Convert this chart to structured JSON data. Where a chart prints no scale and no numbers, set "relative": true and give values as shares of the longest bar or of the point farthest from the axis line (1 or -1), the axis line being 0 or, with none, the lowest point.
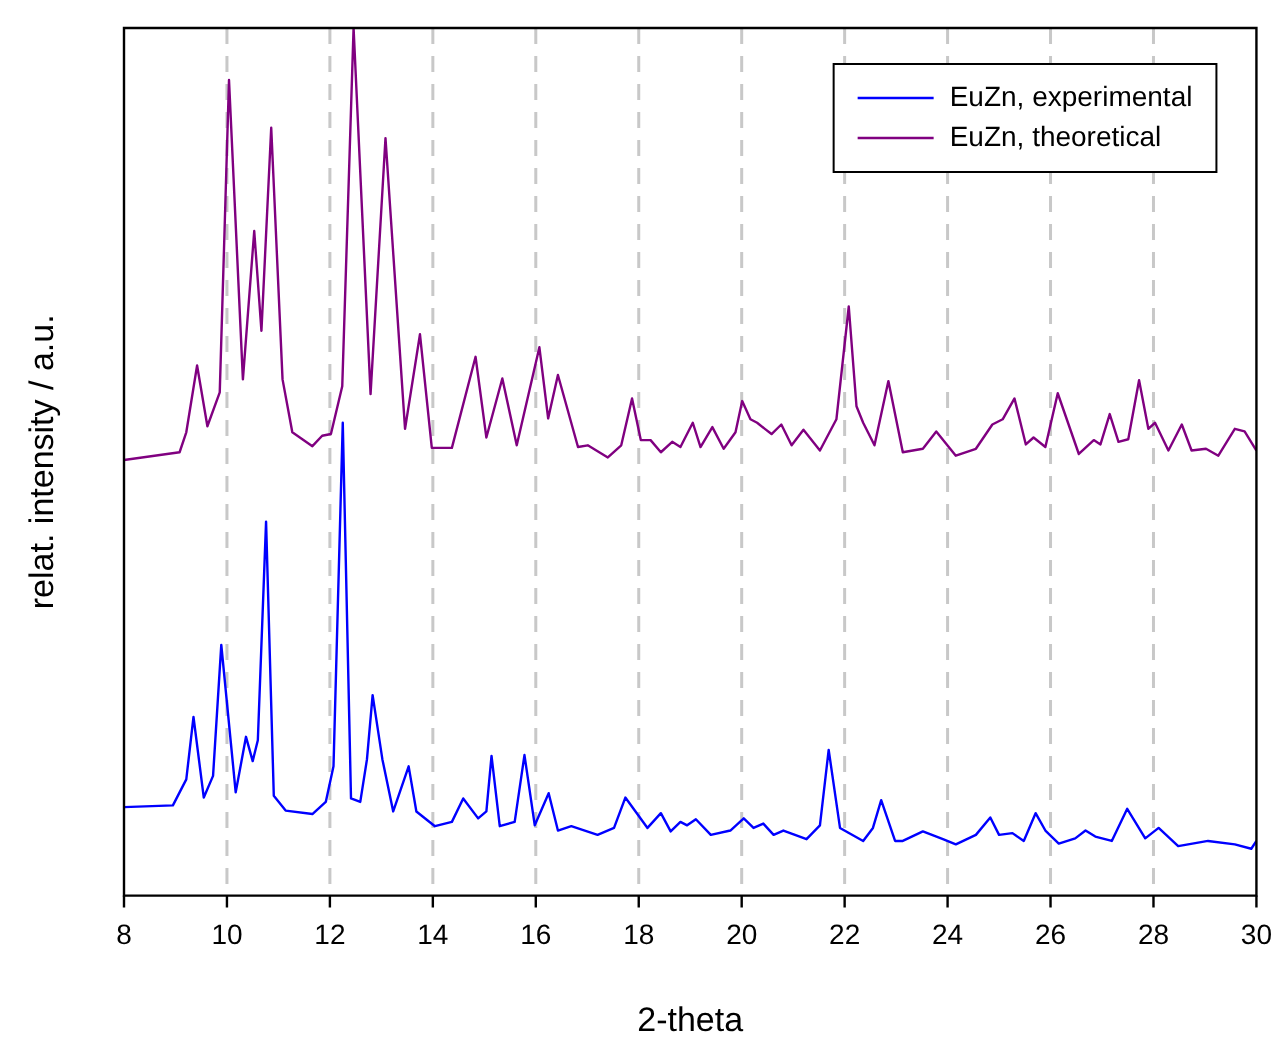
{
  "chart_data": {
    "type": "line",
    "xlabel": "2-theta",
    "ylabel": "relat. intensity / a.u.",
    "relative": true,
    "xlim": [
      8,
      30
    ],
    "xticks": [
      8,
      10,
      12,
      14,
      16,
      18,
      20,
      22,
      24,
      26,
      28,
      30
    ],
    "grid": "x",
    "legend": "top right",
    "marker": "none",
    "line_style": "solid",
    "series": [
      {
        "name": "EuZn, experimental",
        "color": "#0000ff",
        "x": [
          8,
          8.95,
          9.21,
          9.35,
          9.55,
          9.73,
          9.89,
          10.17,
          10.37,
          10.5,
          10.6,
          10.76,
          10.91,
          11.14,
          11.66,
          11.92,
          12.07,
          12.25,
          12.41,
          12.59,
          12.72,
          12.83,
          13.02,
          13.23,
          13.53,
          13.68,
          14.04,
          14.37,
          14.59,
          14.88,
          15.04,
          15.14,
          15.3,
          15.59,
          15.78,
          15.98,
          16.25,
          16.43,
          16.69,
          17.2,
          17.52,
          17.74,
          18.17,
          18.43,
          18.62,
          18.81,
          18.94,
          19.11,
          19.4,
          19.78,
          20.04,
          20.23,
          20.42,
          20.62,
          20.81,
          21.26,
          21.52,
          21.69,
          21.91,
          22.36,
          22.55,
          22.71,
          22.98,
          23.13,
          23.52,
          23.91,
          24.16,
          24.55,
          24.83,
          25.0,
          25.26,
          25.48,
          25.71,
          25.9,
          26.16,
          26.48,
          26.68,
          26.87,
          27.19,
          27.49,
          27.84,
          28.1,
          28.48,
          29.06,
          29.58,
          29.9,
          30
        ],
        "values": [
          0.102,
          0.104,
          0.134,
          0.206,
          0.113,
          0.138,
          0.289,
          0.119,
          0.183,
          0.155,
          0.179,
          0.431,
          0.115,
          0.098,
          0.094,
          0.108,
          0.149,
          0.545,
          0.112,
          0.108,
          0.157,
          0.231,
          0.157,
          0.097,
          0.149,
          0.097,
          0.08,
          0.085,
          0.112,
          0.089,
          0.097,
          0.161,
          0.08,
          0.085,
          0.162,
          0.081,
          0.118,
          0.075,
          0.08,
          0.07,
          0.078,
          0.113,
          0.078,
          0.095,
          0.074,
          0.085,
          0.081,
          0.088,
          0.07,
          0.075,
          0.089,
          0.078,
          0.083,
          0.07,
          0.075,
          0.065,
          0.081,
          0.168,
          0.078,
          0.063,
          0.078,
          0.11,
          0.063,
          0.063,
          0.074,
          0.065,
          0.059,
          0.07,
          0.09,
          0.07,
          0.072,
          0.063,
          0.095,
          0.075,
          0.06,
          0.066,
          0.075,
          0.068,
          0.063,
          0.1,
          0.066,
          0.078,
          0.057,
          0.063,
          0.059,
          0.054,
          0.063
        ]
      },
      {
        "name": "EuZn, theoretical",
        "color": "#800080",
        "x": [
          8,
          9.08,
          9.21,
          9.42,
          9.62,
          9.86,
          10.04,
          10.31,
          10.53,
          10.67,
          10.86,
          11.08,
          11.27,
          11.66,
          11.85,
          12.02,
          12.24,
          12.46,
          12.79,
          13.08,
          13.46,
          13.75,
          13.98,
          14.37,
          14.83,
          15.04,
          15.35,
          15.63,
          16.07,
          16.24,
          16.43,
          16.82,
          17.01,
          17.4,
          17.66,
          17.87,
          18.04,
          18.23,
          18.43,
          18.65,
          18.81,
          19.05,
          19.2,
          19.43,
          19.65,
          19.88,
          20.01,
          20.17,
          20.3,
          20.45,
          20.58,
          20.77,
          20.97,
          21.2,
          21.52,
          21.84,
          22.08,
          22.23,
          22.36,
          22.58,
          22.85,
          23.13,
          23.52,
          23.78,
          24.16,
          24.55,
          24.87,
          25.07,
          25.3,
          25.52,
          25.67,
          25.9,
          26.14,
          26.55,
          26.84,
          26.97,
          27.15,
          27.32,
          27.51,
          27.72,
          27.9,
          28.03,
          28.29,
          28.55,
          28.74,
          29.02,
          29.26,
          29.58,
          29.77,
          30
        ],
        "values": [
          0.502,
          0.511,
          0.534,
          0.611,
          0.541,
          0.58,
          0.94,
          0.595,
          0.766,
          0.651,
          0.885,
          0.595,
          0.534,
          0.518,
          0.53,
          0.532,
          0.587,
          1,
          0.578,
          0.873,
          0.538,
          0.647,
          0.516,
          0.516,
          0.621,
          0.528,
          0.596,
          0.519,
          0.632,
          0.55,
          0.6,
          0.517,
          0.519,
          0.505,
          0.519,
          0.573,
          0.525,
          0.525,
          0.511,
          0.523,
          0.517,
          0.545,
          0.517,
          0.54,
          0.515,
          0.534,
          0.57,
          0.549,
          0.545,
          0.538,
          0.532,
          0.543,
          0.519,
          0.537,
          0.513,
          0.549,
          0.679,
          0.564,
          0.545,
          0.519,
          0.593,
          0.511,
          0.515,
          0.535,
          0.507,
          0.515,
          0.543,
          0.549,
          0.573,
          0.52,
          0.528,
          0.517,
          0.579,
          0.509,
          0.525,
          0.52,
          0.555,
          0.523,
          0.526,
          0.594,
          0.538,
          0.545,
          0.513,
          0.543,
          0.513,
          0.515,
          0.507,
          0.538,
          0.535,
          0.513
        ]
      }
    ]
  }
}
